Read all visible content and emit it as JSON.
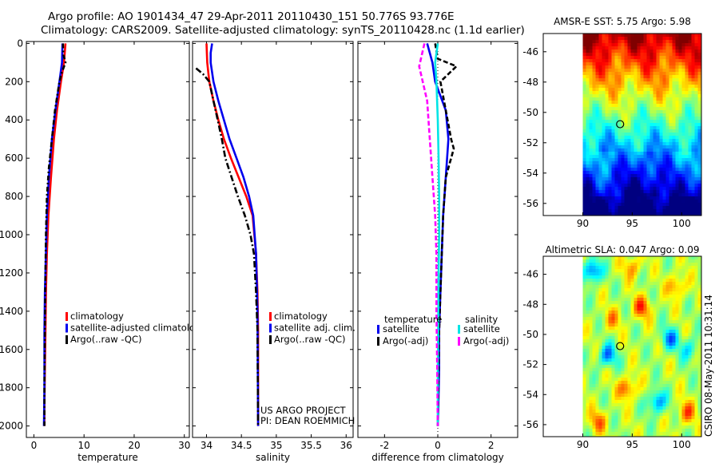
{
  "header": {
    "line1": "Argo profile: AO 1901434_47 29-Apr-2011 20110430_151 50.776S 93.776E",
    "line2": "Climatology: CARS2009. Satellite-adjusted climatology: synTS_20110428.nc (1.1d earlier)"
  },
  "colors": {
    "climatology": "#ff0000",
    "satellite": "#0000ee",
    "argo": "#000000",
    "sal_satellite": "#00e5e5",
    "sal_argo": "#ff00ff"
  },
  "chart_data": [
    {
      "id": "temperature",
      "type": "line",
      "xlabel": "temperature",
      "ylabel": "",
      "xlim": [
        -1.5,
        31
      ],
      "ylim": [
        2060,
        -10
      ],
      "xticks": [
        0,
        10,
        20,
        30
      ],
      "xtick_labels": [
        "0",
        "10",
        "20",
        "30"
      ],
      "yticks": [
        0,
        200,
        400,
        600,
        800,
        1000,
        1200,
        1400,
        1600,
        1800,
        2000
      ],
      "ytick_labels": [
        "0",
        "200",
        "400",
        "600",
        "800",
        "1000",
        "1200",
        "1400",
        "1600",
        "1800",
        "2000"
      ],
      "series": [
        {
          "name": "climatology",
          "color": "#ff0000",
          "dash": "",
          "x": [
            6.3,
            6.0,
            5.4,
            4.6,
            4.0,
            3.4,
            2.9,
            2.6,
            2.4,
            2.3,
            2.2,
            2.1,
            2.1
          ],
          "y": [
            0,
            100,
            200,
            350,
            500,
            700,
            900,
            1100,
            1300,
            1500,
            1700,
            1900,
            2000
          ]
        },
        {
          "name": "satellite-adjusted climatology",
          "color": "#0000ee",
          "dash": "",
          "x": [
            5.7,
            5.6,
            5.1,
            4.3,
            3.6,
            3.0,
            2.6,
            2.4,
            2.2,
            2.1,
            2.1,
            2.0
          ],
          "y": [
            0,
            100,
            200,
            350,
            500,
            700,
            900,
            1100,
            1300,
            1500,
            1800,
            2000
          ]
        },
        {
          "name": "Argo(..raw -QC)",
          "color": "#000000",
          "dash": "6,3,2,3",
          "x": [
            5.8,
            5.9,
            6.3,
            5.6,
            5.1,
            4.2,
            3.6,
            3.0,
            2.6,
            2.4,
            2.3,
            2.2,
            2.1,
            2.1
          ],
          "y": [
            0,
            60,
            100,
            150,
            200,
            350,
            500,
            650,
            800,
            1000,
            1200,
            1500,
            1800,
            2000
          ]
        }
      ],
      "legend": [
        "climatology",
        "satellite-adjusted climatology",
        "Argo(..raw -QC)"
      ],
      "legend_placement": "lower-right"
    },
    {
      "id": "salinity",
      "type": "line",
      "xlabel": "salinity",
      "ylabel": "",
      "xlim": [
        33.8,
        36.1
      ],
      "ylim": [
        2060,
        -10
      ],
      "xticks": [
        34,
        34.5,
        35,
        35.5,
        36
      ],
      "xtick_labels": [
        "34",
        "34.5",
        "35",
        "35.5",
        "36"
      ],
      "series": [
        {
          "name": "climatology",
          "color": "#ff0000",
          "dash": "",
          "x": [
            34.0,
            34.01,
            34.04,
            34.1,
            34.17,
            34.25,
            34.35,
            34.46,
            34.57,
            34.66,
            34.71,
            34.73,
            34.74,
            34.74
          ],
          "y": [
            0,
            100,
            200,
            300,
            400,
            500,
            600,
            700,
            800,
            900,
            1100,
            1300,
            1500,
            2000
          ]
        },
        {
          "name": "satellite adj. clim.",
          "color": "#0000ee",
          "dash": "",
          "x": [
            34.08,
            34.06,
            34.06,
            34.1,
            34.17,
            34.25,
            34.33,
            34.43,
            34.53,
            34.61,
            34.67,
            34.71,
            34.73,
            34.74
          ],
          "y": [
            0,
            50,
            100,
            200,
            300,
            400,
            500,
            600,
            700,
            800,
            900,
            1100,
            1400,
            2000
          ]
        },
        {
          "name": "Argo(..raw -QC)",
          "color": "#000000",
          "dash": "8,3,2,3",
          "x": [
            33.85,
            33.95,
            34.04,
            34.1,
            34.16,
            34.22,
            34.27,
            34.36,
            34.45,
            34.55,
            34.63,
            34.68,
            34.71,
            34.73,
            34.74
          ],
          "y": [
            130,
            160,
            200,
            300,
            400,
            500,
            600,
            700,
            800,
            900,
            1000,
            1100,
            1300,
            1500,
            2000
          ]
        }
      ],
      "legend": [
        "climatology",
        "satellite adj. clim.",
        "Argo(..raw -QC)"
      ],
      "legend_placement": "lower-right",
      "annotations": [
        "US ARGO PROJECT",
        "PI: DEAN ROEMMICH"
      ]
    },
    {
      "id": "difference",
      "type": "line",
      "xlabel": "difference from climatology",
      "ylabel": "",
      "xlim": [
        -3,
        3
      ],
      "ylim": [
        2060,
        -10
      ],
      "xticks": [
        -2,
        0,
        2
      ],
      "xtick_labels": [
        "-2",
        "0",
        "2"
      ],
      "series": [
        {
          "name": "temperature satellite",
          "color": "#0000ee",
          "dash": "",
          "x": [
            -0.4,
            -0.2,
            -0.1,
            0.3,
            0.4,
            0.3,
            0.2,
            0.15,
            0.1,
            0.05,
            0.05,
            0.02,
            0.0
          ],
          "y": [
            0,
            100,
            200,
            350,
            500,
            700,
            900,
            1100,
            1300,
            1500,
            1700,
            1900,
            2000
          ]
        },
        {
          "name": "temperature Argo(-adj)",
          "color": "#000000",
          "dash": "6,3",
          "x": [
            -0.1,
            0.0,
            0.7,
            0.1,
            0.5,
            0.6,
            0.3,
            0.2,
            0.15,
            0.1,
            0.05,
            0.02,
            0.0
          ],
          "y": [
            0,
            80,
            120,
            200,
            500,
            550,
            700,
            900,
            1100,
            1300,
            1500,
            1800,
            2000
          ]
        },
        {
          "name": "salinity satellite",
          "color": "#00e5e5",
          "dash": "",
          "x": [
            0.0,
            -0.1,
            -0.05,
            0.0,
            0.03,
            0.05,
            0.05,
            0.03,
            0.02,
            0.0,
            0.0
          ],
          "y": [
            0,
            100,
            200,
            400,
            600,
            800,
            1000,
            1200,
            1400,
            1700,
            2000
          ]
        },
        {
          "name": "salinity Argo(-adj)",
          "color": "#ff00ff",
          "dash": "6,3",
          "x": [
            -0.5,
            -0.7,
            -0.4,
            -0.3,
            -0.2,
            -0.1,
            -0.05,
            -0.05,
            -0.02,
            0.0
          ],
          "y": [
            0,
            120,
            300,
            500,
            700,
            900,
            1100,
            1400,
            1700,
            2000
          ]
        }
      ],
      "legend_headers": [
        "temperature",
        "salinity"
      ],
      "legend": [
        "satellite",
        "Argo(-adj)",
        "satellite",
        "Argo(-adj)"
      ],
      "legend_placement": "lower-center"
    },
    {
      "id": "sst_map",
      "type": "heatmap",
      "title": "AMSR-E SST: 5.75 Argo: 5.98",
      "xlim": [
        86,
        102
      ],
      "ylim": [
        -56.8,
        -44.8
      ],
      "xticks": [
        90,
        95,
        100
      ],
      "xtick_labels": [
        "90",
        "95",
        "100"
      ],
      "yticks": [
        -46,
        -48,
        -50,
        -52,
        -54,
        -56
      ],
      "ytick_labels": [
        "-46",
        "-48",
        "-50",
        "-52",
        "-54",
        "-56"
      ],
      "data_xlim": [
        90,
        102
      ],
      "marker": {
        "lon": 93.776,
        "lat": -50.776
      }
    },
    {
      "id": "sla_map",
      "type": "heatmap",
      "title": "Altimetric SLA: 0.047 Argo: 0.09",
      "xlim": [
        86,
        102
      ],
      "ylim": [
        -56.8,
        -44.8
      ],
      "xticks": [
        90,
        95,
        100
      ],
      "xtick_labels": [
        "90",
        "95",
        "100"
      ],
      "yticks": [
        -46,
        -48,
        -50,
        -52,
        -54,
        -56
      ],
      "ytick_labels": [
        "-46",
        "-48",
        "-50",
        "-52",
        "-54",
        "-56"
      ],
      "data_xlim": [
        90,
        102
      ],
      "marker": {
        "lon": 93.776,
        "lat": -50.776
      }
    }
  ],
  "footer": {
    "stamp": "CSIRO 08-May-2011 10:31:14"
  }
}
